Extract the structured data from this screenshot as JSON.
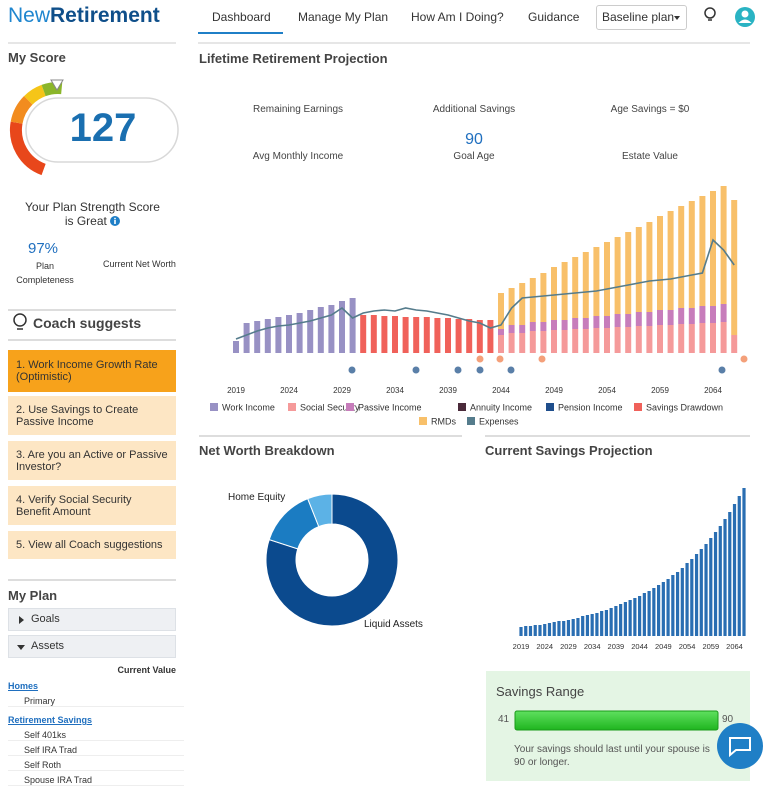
{
  "header": {
    "logo_light": "New",
    "logo_bold": "Retirement",
    "nav": [
      "Dashboard",
      "Manage My Plan",
      "How Am I Doing?",
      "Guidance"
    ],
    "plan_select": "Baseline plan"
  },
  "score": {
    "title": "My Score",
    "value": 127,
    "strength_text": "Your Plan Strength Score is Great",
    "completeness": "97%",
    "completeness_label": "Plan Completeness",
    "net_worth_label": "Current Net Worth"
  },
  "coach": {
    "title": "Coach suggests",
    "items": [
      "1. Work Income Growth Rate (Optimistic)",
      "2. Use Savings to Create Passive Income",
      "3. Are you an Active or Passive Investor?",
      "4. Verify Social Security Benefit Amount",
      "5. View all Coach suggestions"
    ]
  },
  "my_plan": {
    "title": "My Plan",
    "sections": [
      "Goals",
      "Assets"
    ],
    "current_value_label": "Current Value",
    "groups": [
      {
        "name": "Homes",
        "items": [
          "Primary"
        ]
      },
      {
        "name": "Retirement Savings",
        "items": [
          "Self 401ks",
          "Self IRA Trad",
          "Self Roth",
          "Spouse IRA Trad"
        ]
      }
    ]
  },
  "projection": {
    "title": "Lifetime Retirement Projection",
    "stats": [
      "Remaining Earnings",
      "Additional Savings",
      "Age Savings = $0",
      "Avg Monthly Income",
      "Estate Value"
    ],
    "goal_age": {
      "value": 90,
      "label": "Goal Age"
    }
  },
  "net_worth_title": "Net Worth Breakdown",
  "savings_title": "Current Savings Projection",
  "savings_range": {
    "title": "Savings Range",
    "min": 41,
    "max": 90,
    "message": "Your savings should last until your spouse is 90 or longer."
  },
  "chart_data": [
    {
      "type": "bar",
      "stacked": true,
      "categories": [
        "2019",
        null,
        null,
        null,
        null,
        "2024",
        null,
        null,
        null,
        null,
        "2029",
        null,
        null,
        null,
        null,
        "2034",
        null,
        null,
        null,
        null,
        "2039",
        null,
        null,
        null,
        null,
        "2044",
        null,
        null,
        null,
        null,
        "2049",
        null,
        null,
        null,
        null,
        "2054",
        null,
        null,
        null,
        null,
        "2059",
        null,
        null,
        null,
        null,
        "2064",
        null,
        null
      ],
      "ylim": [
        0,
        175
      ],
      "series": [
        {
          "name": "Work Income",
          "color": "#9891c4",
          "values": [
            12,
            30,
            32,
            34,
            36,
            38,
            40,
            43,
            46,
            48,
            52,
            55,
            null,
            null,
            null,
            null,
            null,
            null,
            null,
            null,
            null,
            null,
            null,
            null,
            null,
            null,
            null,
            null,
            null,
            null,
            null,
            null,
            null,
            null,
            null,
            null,
            null,
            null,
            null,
            null,
            null,
            null,
            null,
            null,
            null,
            null,
            null,
            null
          ]
        },
        {
          "name": "Social Security",
          "color": "#f59a9a",
          "values": [
            null,
            null,
            null,
            null,
            null,
            null,
            null,
            null,
            null,
            null,
            null,
            null,
            null,
            null,
            null,
            null,
            null,
            null,
            null,
            null,
            null,
            null,
            null,
            null,
            null,
            18,
            20,
            20,
            22,
            22,
            23,
            23,
            24,
            24,
            25,
            25,
            26,
            26,
            27,
            27,
            28,
            28,
            29,
            29,
            30,
            30,
            31,
            18
          ]
        },
        {
          "name": "Passive Income",
          "color": "#c77dbb",
          "values": [
            null,
            null,
            null,
            null,
            null,
            null,
            null,
            null,
            null,
            null,
            null,
            null,
            null,
            null,
            null,
            null,
            null,
            null,
            null,
            null,
            null,
            null,
            null,
            null,
            null,
            6,
            8,
            8,
            9,
            9,
            10,
            10,
            11,
            11,
            12,
            12,
            13,
            13,
            14,
            14,
            15,
            15,
            16,
            16,
            17,
            17,
            18,
            null
          ]
        },
        {
          "name": "Annuity Income",
          "color": "#4a2a3a",
          "values": [
            null,
            null,
            null,
            null,
            null,
            null,
            null,
            null,
            null,
            null,
            null,
            null,
            null,
            null,
            null,
            null,
            null,
            null,
            null,
            null,
            null,
            null,
            null,
            null,
            null,
            null,
            null,
            null,
            null,
            null,
            null,
            null,
            null,
            null,
            null,
            null,
            null,
            null,
            null,
            null,
            null,
            null,
            null,
            null,
            null,
            null,
            null,
            null
          ]
        },
        {
          "name": "Pension Income",
          "color": "#1f4e8c",
          "values": [
            null,
            null,
            null,
            null,
            null,
            null,
            null,
            null,
            null,
            null,
            null,
            null,
            null,
            null,
            null,
            null,
            null,
            null,
            null,
            null,
            null,
            null,
            null,
            null,
            null,
            null,
            null,
            null,
            null,
            null,
            null,
            null,
            null,
            null,
            null,
            null,
            null,
            null,
            null,
            null,
            null,
            null,
            null,
            null,
            null,
            null,
            null,
            null
          ]
        },
        {
          "name": "Savings Drawdown",
          "color": "#f0615a",
          "values": [
            null,
            null,
            null,
            null,
            null,
            null,
            null,
            null,
            null,
            null,
            null,
            null,
            38,
            38,
            37,
            37,
            36,
            36,
            36,
            35,
            35,
            34,
            34,
            33,
            33,
            null,
            null,
            null,
            null,
            null,
            null,
            null,
            null,
            null,
            null,
            null,
            null,
            null,
            null,
            null,
            null,
            null,
            null,
            null,
            null,
            null,
            null,
            null
          ]
        },
        {
          "name": "RMDs",
          "color": "#f8c06a",
          "values": [
            null,
            null,
            null,
            null,
            null,
            null,
            null,
            null,
            null,
            null,
            null,
            null,
            null,
            null,
            null,
            null,
            null,
            null,
            null,
            null,
            null,
            null,
            null,
            null,
            null,
            36,
            37,
            42,
            44,
            49,
            53,
            58,
            61,
            66,
            69,
            74,
            77,
            82,
            85,
            90,
            94,
            99,
            102,
            107,
            110,
            115,
            118,
            135
          ]
        },
        {
          "name": "Expenses",
          "type": "line",
          "color": "#557c8c",
          "values": [
            14,
            18,
            22,
            25,
            27,
            28,
            30,
            32,
            35,
            38,
            45,
            35,
            40,
            42,
            43,
            42,
            45,
            43,
            42,
            40,
            38,
            35,
            32,
            30,
            25,
            28,
            45,
            55,
            56,
            57,
            58,
            59,
            60,
            61,
            62,
            64,
            66,
            68,
            70,
            72,
            73,
            74,
            76,
            78,
            80,
            113,
            103,
            88
          ]
        }
      ]
    },
    {
      "type": "pie",
      "donut": true,
      "categories": [
        "Liquid Assets",
        null,
        "Home Equity"
      ],
      "values": [
        80,
        14,
        6
      ],
      "colors": [
        "#0b4a8e",
        "#1b7cc2",
        "#5cb2e6"
      ]
    },
    {
      "type": "bar",
      "categories": [
        "2019",
        null,
        null,
        null,
        null,
        "2024",
        null,
        null,
        null,
        null,
        "2029",
        null,
        null,
        null,
        null,
        "2034",
        null,
        null,
        null,
        null,
        "2039",
        null,
        null,
        null,
        null,
        "2044",
        null,
        null,
        null,
        null,
        "2049",
        null,
        null,
        null,
        null,
        "2054",
        null,
        null,
        null,
        null,
        "2059",
        null,
        null,
        null,
        null,
        "2064",
        null,
        null
      ],
      "values": [
        9,
        10,
        10,
        11,
        11,
        12,
        13,
        14,
        15,
        15,
        16,
        17,
        18,
        20,
        21,
        22,
        23,
        25,
        26,
        28,
        30,
        32,
        34,
        36,
        38,
        40,
        43,
        45,
        48,
        51,
        54,
        57,
        61,
        64,
        68,
        73,
        77,
        82,
        87,
        92,
        98,
        104,
        110,
        117,
        124,
        132,
        140,
        148
      ],
      "color": "#2a6eb2",
      "ylim": [
        0,
        150
      ]
    }
  ]
}
